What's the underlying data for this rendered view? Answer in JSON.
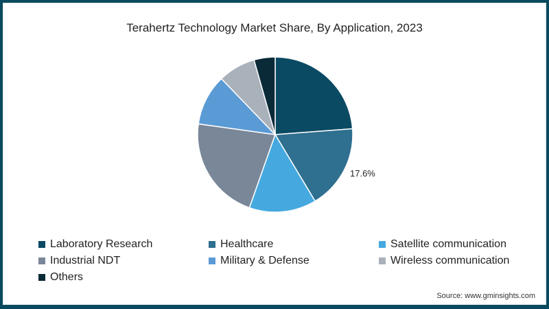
{
  "chart_data": {
    "type": "pie",
    "title": "Terahertz Technology Market Share, By Application, 2023",
    "categories": [
      "Laboratory Research",
      "Healthcare",
      "Satellite communication",
      "Industrial NDT",
      "Military & Defense",
      "Wireless communication",
      "Others"
    ],
    "values": [
      23.8,
      17.6,
      14.0,
      21.8,
      10.6,
      7.8,
      4.4
    ],
    "colors": [
      "#0a4a63",
      "#2f6f8f",
      "#45a9e0",
      "#7a8799",
      "#5b9bd5",
      "#a9b1bb",
      "#0b2a38"
    ],
    "annotations": [
      {
        "category": "Healthcare",
        "text": "17.6%"
      }
    ],
    "legend_position": "bottom",
    "source": "Source: www.gminsights.com"
  },
  "title": "Terahertz Technology Market Share, By Application, 2023",
  "annotation": "17.6%",
  "legend": [
    {
      "label": "Laboratory Research",
      "color": "#0a4a63"
    },
    {
      "label": "Healthcare",
      "color": "#2f6f8f"
    },
    {
      "label": "Satellite communication",
      "color": "#45a9e0"
    },
    {
      "label": "Industrial NDT",
      "color": "#7a8799"
    },
    {
      "label": "Military & Defense",
      "color": "#5b9bd5"
    },
    {
      "label": "Wireless communication",
      "color": "#a9b1bb"
    },
    {
      "label": "Others",
      "color": "#0b2a38"
    }
  ],
  "source": "Source: www.gminsights.com"
}
